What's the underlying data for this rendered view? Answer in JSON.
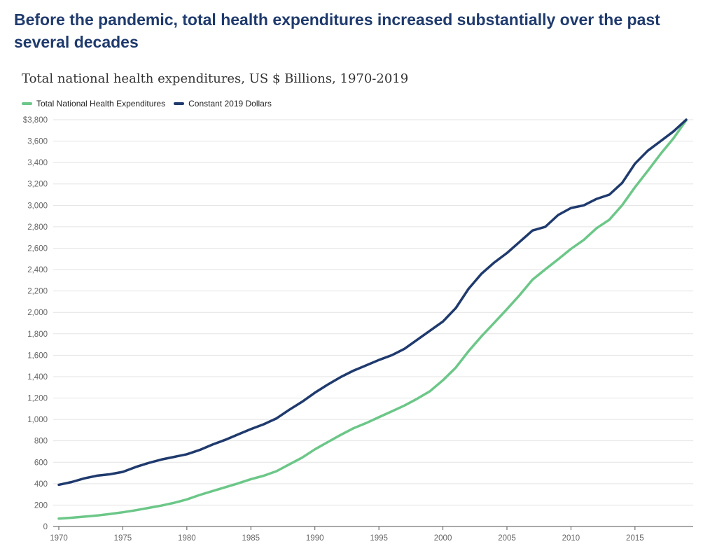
{
  "headline": "Before the pandemic, total health expenditures increased substantially over the past several decades",
  "chart_data": {
    "type": "line",
    "title": "Total national health expenditures, US $ Billions, 1970-2019",
    "xlabel": "",
    "ylabel": "",
    "xlim": [
      1970,
      2019
    ],
    "ylim": [
      0,
      3800
    ],
    "y_ticks": [
      0,
      200,
      400,
      600,
      800,
      1000,
      1200,
      1400,
      1600,
      1800,
      2000,
      2200,
      2400,
      2600,
      2800,
      3000,
      3200,
      3400,
      3600,
      3800
    ],
    "y_tick_labels": [
      "0",
      "200",
      "400",
      "600",
      "800",
      "1,000",
      "1,200",
      "1,400",
      "1,600",
      "1,800",
      "2,000",
      "2,200",
      "2,400",
      "2,600",
      "2,800",
      "3,000",
      "3,200",
      "3,400",
      "3,600",
      "$3,800"
    ],
    "x_ticks": [
      1970,
      1975,
      1980,
      1985,
      1990,
      1995,
      2000,
      2005,
      2010,
      2015
    ],
    "x_tick_labels": [
      "1970",
      "1975",
      "1980",
      "1985",
      "1990",
      "1995",
      "2000",
      "2005",
      "2010",
      "2015"
    ],
    "grid": true,
    "legend_position": "top-left",
    "x": [
      1970,
      1971,
      1972,
      1973,
      1974,
      1975,
      1976,
      1977,
      1978,
      1979,
      1980,
      1981,
      1982,
      1983,
      1984,
      1985,
      1986,
      1987,
      1988,
      1989,
      1990,
      1991,
      1992,
      1993,
      1994,
      1995,
      1996,
      1997,
      1998,
      1999,
      2000,
      2001,
      2002,
      2003,
      2004,
      2005,
      2006,
      2007,
      2008,
      2009,
      2010,
      2011,
      2012,
      2013,
      2014,
      2015,
      2016,
      2017,
      2018,
      2019
    ],
    "series": [
      {
        "name": "Total National Health Expenditures",
        "color": "#6cc788",
        "values": [
          74,
          82,
          92,
          103,
          117,
          133,
          152,
          173,
          195,
          221,
          253,
          294,
          331,
          367,
          403,
          442,
          474,
          517,
          580,
          643,
          721,
          788,
          855,
          917,
          966,
          1021,
          1075,
          1130,
          1194,
          1265,
          1366,
          1484,
          1637,
          1775,
          1902,
          2030,
          2163,
          2306,
          2403,
          2496,
          2593,
          2677,
          2787,
          2866,
          3002,
          3170,
          3322,
          3480,
          3625,
          3795
        ]
      },
      {
        "name": "Constant 2019 Dollars",
        "color": "#1f3a6d",
        "values": [
          390,
          415,
          450,
          475,
          488,
          510,
          555,
          593,
          625,
          650,
          675,
          715,
          765,
          810,
          860,
          910,
          955,
          1010,
          1090,
          1165,
          1250,
          1325,
          1395,
          1455,
          1505,
          1555,
          1600,
          1660,
          1745,
          1830,
          1915,
          2040,
          2220,
          2360,
          2465,
          2555,
          2660,
          2765,
          2800,
          2910,
          2975,
          3000,
          3060,
          3100,
          3210,
          3390,
          3510,
          3600,
          3690,
          3800
        ]
      }
    ]
  }
}
